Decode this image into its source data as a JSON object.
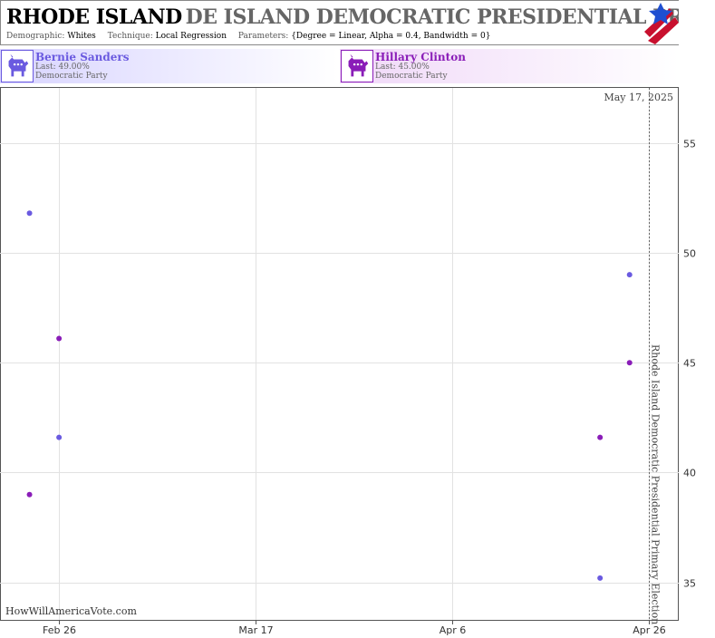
{
  "header": {
    "title_state": "RHODE ISLAND",
    "title_race": "DE ISLAND DEMOCRATIC PRESIDENTIAL PRIMA",
    "params": [
      {
        "label": "Demographic:",
        "value": "Whites"
      },
      {
        "label": "Technique:",
        "value": "Local Regression"
      },
      {
        "label": "Parameters:",
        "value": "{Degree = Linear, Alpha = 0.4, Bandwidth = 0}"
      }
    ]
  },
  "candidates": [
    {
      "name": "Bernie Sanders",
      "last": "Last: 49.00%",
      "party": "Democratic Party",
      "color": "#6a5ae0",
      "icon": "democratic-donkey-icon"
    },
    {
      "name": "Hillary Clinton",
      "last": "Last: 45.00%",
      "party": "Democratic Party",
      "color": "#8a1db8",
      "icon": "democratic-donkey-icon"
    }
  ],
  "chart_data": {
    "type": "scatter",
    "title": "",
    "xlabel": "",
    "ylabel": "",
    "x_ticks": [
      "2016-02-26",
      "2016-03-17",
      "2016-04-06",
      "2016-04-26"
    ],
    "x_tick_labels": [
      "Feb 26",
      "Mar 17",
      "Apr 6",
      "Apr 26"
    ],
    "xlim": [
      "2016-02-20",
      "2016-04-29"
    ],
    "ylim": [
      33.3,
      57.5
    ],
    "y_ticks": [
      35,
      40,
      45,
      50,
      55
    ],
    "grid": true,
    "y_axis_position": "right",
    "series": [
      {
        "name": "Bernie Sanders",
        "color": "#6a5ae0",
        "points": [
          {
            "x": "2016-02-23",
            "y": 51.8
          },
          {
            "x": "2016-02-26",
            "y": 41.6
          },
          {
            "x": "2016-04-21",
            "y": 35.2
          },
          {
            "x": "2016-04-24",
            "y": 49.0
          }
        ]
      },
      {
        "name": "Hillary Clinton",
        "color": "#8a1db8",
        "points": [
          {
            "x": "2016-02-23",
            "y": 39.0
          },
          {
            "x": "2016-02-26",
            "y": 46.1
          },
          {
            "x": "2016-04-21",
            "y": 41.6
          },
          {
            "x": "2016-04-24",
            "y": 45.0
          }
        ]
      }
    ],
    "event_line": {
      "x": "2016-04-26",
      "label": "Rhode Island Democratic Presidential Primary Election"
    },
    "date_stamp": "May 17, 2025",
    "watermark": "HowWillAmericaVote.com"
  }
}
